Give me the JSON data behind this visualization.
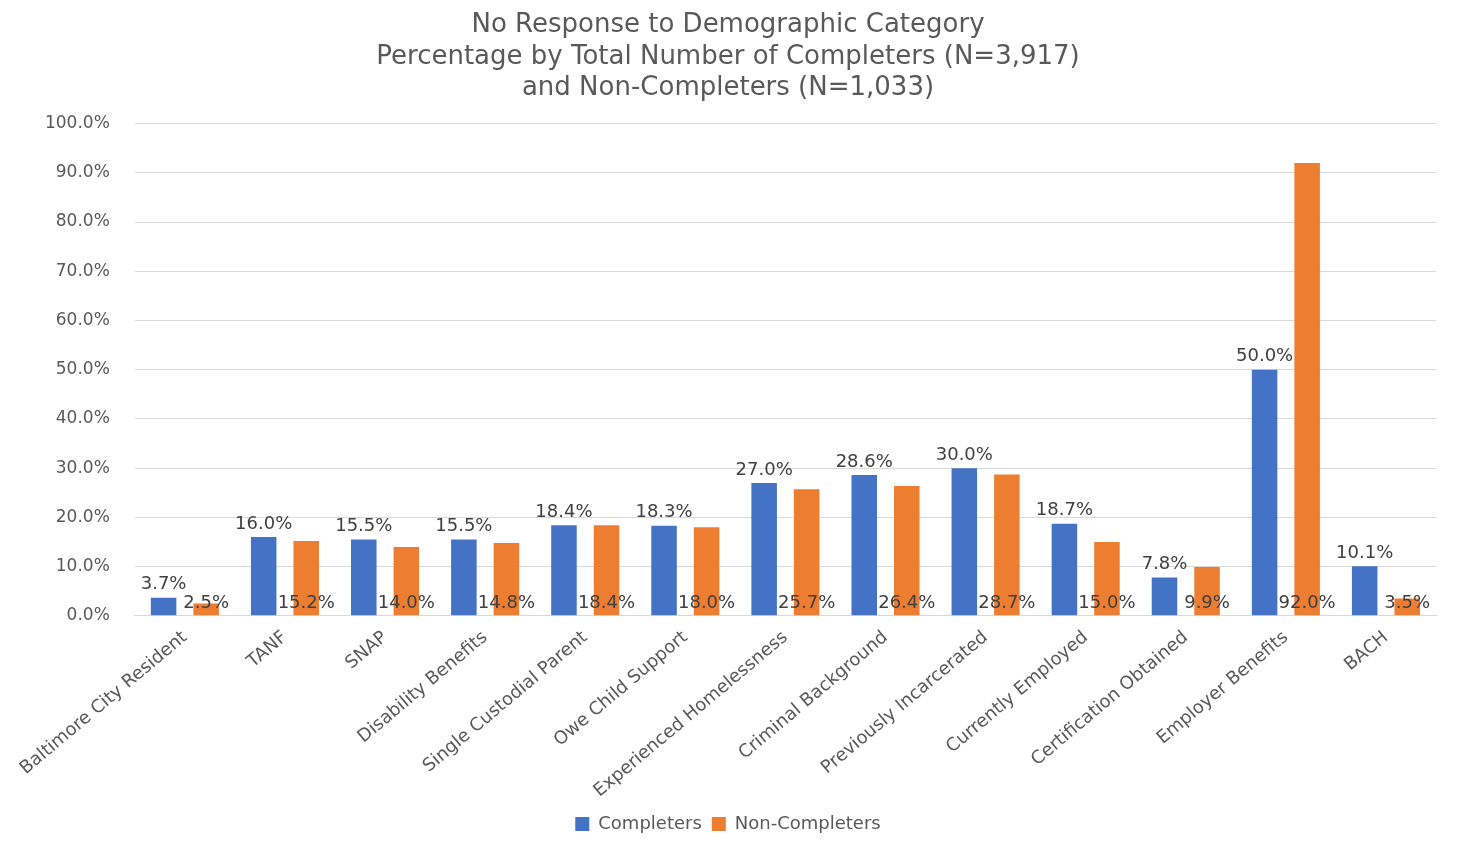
{
  "chart_data": {
    "type": "bar",
    "title": "No Response to Demographic Category\nPercentage by Total Number of Completers (N=3,917)\nand Non-Completers (N=1,033)",
    "categories": [
      "Baltimore City Resident",
      "TANF",
      "SNAP",
      "Disability Benefits",
      "Single Custodial Parent",
      "Owe Child Support",
      "Experienced Homelessness",
      "Criminal Background",
      "Previously Incarcerated",
      "Currently Employed",
      "Certification Obtained",
      "Employer Benefits",
      "BACH"
    ],
    "series": [
      {
        "name": "Completers",
        "color": "#4472c4",
        "values": [
          3.7,
          16.0,
          15.5,
          15.5,
          18.4,
          18.3,
          27.0,
          28.6,
          30.0,
          18.7,
          7.8,
          50.0,
          10.1
        ],
        "value_labels": [
          "3.7%",
          "16.0%",
          "15.5%",
          "15.5%",
          "18.4%",
          "18.3%",
          "27.0%",
          "28.6%",
          "30.0%",
          "18.7%",
          "7.8%",
          "50.0%",
          "10.1%"
        ]
      },
      {
        "name": "Non-Completers",
        "color": "#ed7d31",
        "values": [
          2.5,
          15.2,
          14.0,
          14.8,
          18.4,
          18.0,
          25.7,
          26.4,
          28.7,
          15.0,
          9.9,
          92.0,
          3.5
        ],
        "value_labels": [
          "2.5%",
          "15.2%",
          "14.0%",
          "14.8%",
          "18.4%",
          "18.0%",
          "25.7%",
          "26.4%",
          "28.7%",
          "15.0%",
          "9.9%",
          "92.0%",
          "3.5%"
        ]
      }
    ],
    "ylim": [
      0,
      100
    ],
    "yticks": [
      {
        "value": 0,
        "label": "0.0%"
      },
      {
        "value": 10,
        "label": "10.0%"
      },
      {
        "value": 20,
        "label": "20.0%"
      },
      {
        "value": 30,
        "label": "30.0%"
      },
      {
        "value": 40,
        "label": "40.0%"
      },
      {
        "value": 50,
        "label": "50.0%"
      },
      {
        "value": 60,
        "label": "60.0%"
      },
      {
        "value": 70,
        "label": "70.0%"
      },
      {
        "value": 80,
        "label": "80.0%"
      },
      {
        "value": 90,
        "label": "90.0%"
      },
      {
        "value": 100,
        "label": "100.0%"
      }
    ],
    "grid": "y",
    "legend": "bottom"
  }
}
